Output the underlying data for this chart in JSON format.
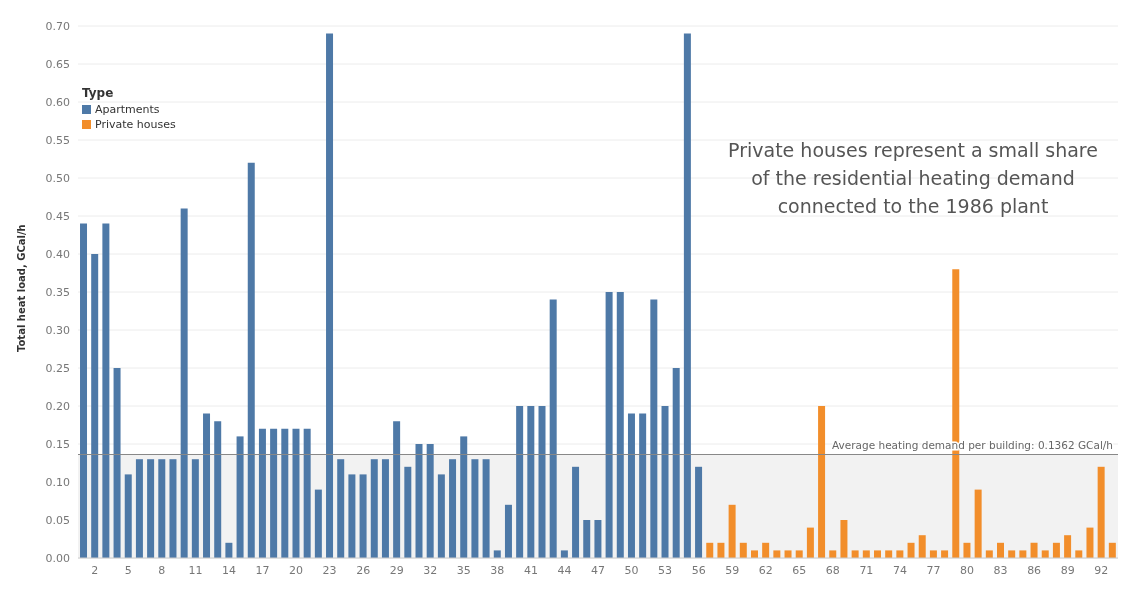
{
  "chart_data": {
    "type": "bar",
    "ylabel": "Total heat load, GCal/h",
    "legend_title": "Type",
    "legend": "top left",
    "grid": "y",
    "stacked": true,
    "annotations": [
      "Private houses represent a small share of the residential heating demand connected to the 1986 plant"
    ],
    "categories": [
      null,
      "2",
      null,
      null,
      "5",
      null,
      null,
      "8",
      null,
      null,
      "11",
      null,
      null,
      "14",
      null,
      null,
      "17",
      null,
      null,
      "20",
      null,
      null,
      "23",
      null,
      null,
      "26",
      null,
      null,
      "29",
      null,
      null,
      "32",
      null,
      null,
      "35",
      null,
      null,
      "38",
      null,
      null,
      "41",
      null,
      null,
      "44",
      null,
      null,
      "47",
      null,
      null,
      "50",
      null,
      null,
      "53",
      null,
      null,
      "56",
      null,
      null,
      "59",
      null,
      null,
      "62",
      null,
      null,
      "65",
      null,
      null,
      "68",
      null,
      null,
      "71",
      null,
      null,
      "74",
      null,
      null,
      "77",
      null,
      null,
      "80",
      null,
      null,
      "83",
      null,
      null,
      "86",
      null,
      null,
      "89",
      null,
      null,
      "92",
      null
    ],
    "series": [
      {
        "name": "Apartments",
        "color": "#4e79a7",
        "values": [
          0.44,
          0.4,
          0.44,
          0.25,
          0.11,
          0.13,
          0.13,
          0.13,
          0.13,
          0.46,
          0.13,
          0.19,
          0.18,
          0.02,
          0.16,
          0.52,
          0.17,
          0.17,
          0.17,
          0.17,
          0.17,
          0.09,
          0.69,
          0.13,
          0.11,
          0.11,
          0.13,
          0.13,
          0.18,
          0.12,
          0.15,
          0.15,
          0.11,
          0.13,
          0.16,
          0.13,
          0.13,
          0.01,
          0.07,
          0.2,
          0.2,
          0.2,
          0.34,
          0.01,
          0.12,
          0.05,
          0.05,
          0.35,
          0.35,
          0.19,
          0.19,
          0.34,
          0.2,
          0.25,
          0.69,
          0.12,
          null,
          null,
          null,
          null,
          null,
          null,
          null,
          null,
          null,
          null,
          null,
          null,
          null,
          null,
          null,
          null,
          null,
          null,
          null,
          null,
          null,
          null,
          null,
          null,
          null,
          null,
          null,
          null,
          null,
          null,
          null,
          null,
          null,
          null,
          null,
          null,
          null
        ]
      },
      {
        "name": "Private houses",
        "color": "#f28e2b",
        "values": [
          null,
          null,
          null,
          null,
          null,
          null,
          null,
          null,
          null,
          null,
          null,
          null,
          null,
          null,
          null,
          null,
          null,
          null,
          null,
          null,
          null,
          null,
          null,
          null,
          null,
          null,
          null,
          null,
          null,
          null,
          null,
          null,
          null,
          null,
          null,
          null,
          null,
          null,
          null,
          null,
          null,
          null,
          null,
          null,
          null,
          null,
          null,
          null,
          null,
          null,
          null,
          null,
          null,
          null,
          null,
          null,
          0.02,
          0.02,
          0.07,
          0.02,
          0.01,
          0.02,
          0.01,
          0.01,
          0.01,
          0.04,
          0.2,
          0.01,
          0.05,
          0.01,
          0.01,
          0.01,
          0.01,
          0.01,
          0.02,
          0.03,
          0.01,
          0.01,
          0.38,
          0.02,
          0.09,
          0.01,
          0.02,
          0.01,
          0.01,
          0.02,
          0.01,
          0.02,
          0.03,
          0.01,
          0.04,
          0.12,
          0.02
        ]
      }
    ],
    "ylim": [
      0,
      0.7
    ],
    "yticks": [
      {
        "value": 0,
        "label": "0.00"
      },
      {
        "value": 0.05,
        "label": "0.05"
      },
      {
        "value": 0.1,
        "label": "0.10"
      },
      {
        "value": 0.15,
        "label": "0.15"
      },
      {
        "value": 0.2,
        "label": "0.20"
      },
      {
        "value": 0.25,
        "label": "0.25"
      },
      {
        "value": 0.3,
        "label": "0.30"
      },
      {
        "value": 0.35,
        "label": "0.35"
      },
      {
        "value": 0.4,
        "label": "0.40"
      },
      {
        "value": 0.45,
        "label": "0.45"
      },
      {
        "value": 0.5,
        "label": "0.50"
      },
      {
        "value": 0.55,
        "label": "0.55"
      },
      {
        "value": 0.6,
        "label": "0.60"
      },
      {
        "value": 0.65,
        "label": "0.65"
      },
      {
        "value": 0.7,
        "label": "0.70"
      }
    ],
    "bands": [
      {
        "axis": "y",
        "from": 0,
        "to": 0.1362,
        "color": "#f2f2f2"
      }
    ],
    "ref_lines": [
      {
        "axis": "y",
        "value": 0.1362,
        "label": "Average heating demand per building: 0.1362 GCal/h",
        "color": "#888888"
      }
    ]
  }
}
